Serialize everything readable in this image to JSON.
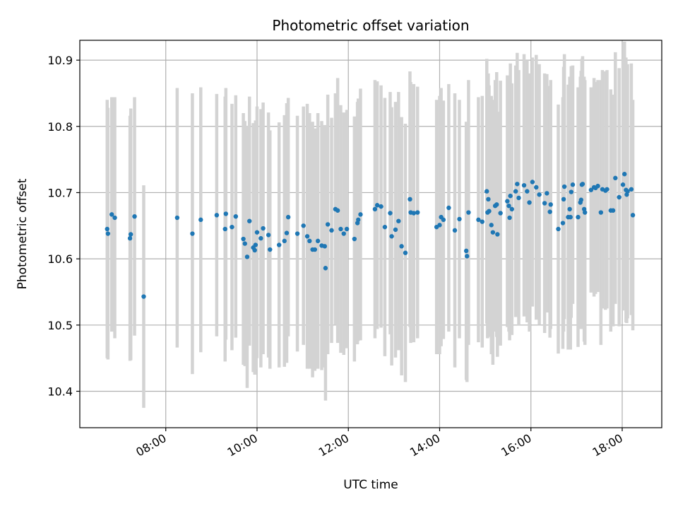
{
  "chart_data": {
    "type": "scatter",
    "title": "Photometric offset variation",
    "xlabel": "UTC time",
    "ylabel": "Photometric offset",
    "x_is_time": true,
    "xlim": [
      "06:07",
      "18:52"
    ],
    "ylim": [
      10.345,
      10.93
    ],
    "x_ticks": [
      "08:00",
      "10:00",
      "12:00",
      "14:00",
      "16:00",
      "18:00"
    ],
    "y_ticks": [
      10.4,
      10.5,
      10.6,
      10.7,
      10.8,
      10.9
    ],
    "grid": true,
    "colors": {
      "point": "#1f77b4",
      "errorbar": "#d3d3d3",
      "grid": "#b0b0b0"
    },
    "series": [
      {
        "points": [
          [
            "06:43",
            10.645,
            0.195
          ],
          [
            "06:44",
            10.638,
            0.19
          ],
          [
            "06:49",
            10.667,
            0.177
          ],
          [
            "06:53",
            10.662,
            0.182
          ],
          [
            "07:13",
            10.631,
            0.185
          ],
          [
            "07:14",
            10.637,
            0.19
          ],
          [
            "07:19",
            10.664,
            0.18
          ],
          [
            "07:31",
            10.543,
            0.168
          ],
          [
            "08:15",
            10.662,
            0.196
          ],
          [
            "08:35",
            10.638,
            0.212
          ],
          [
            "08:46",
            10.659,
            0.2
          ],
          [
            "09:07",
            10.666,
            0.183
          ],
          [
            "09:18",
            10.645,
            0.2
          ],
          [
            "09:19",
            10.668,
            0.19
          ],
          [
            "09:27",
            10.648,
            0.186
          ],
          [
            "09:32",
            10.664,
            0.183
          ],
          [
            "09:42",
            10.63,
            0.19
          ],
          [
            "09:44",
            10.623,
            0.185
          ],
          [
            "09:47",
            10.603,
            0.198
          ],
          [
            "09:50",
            10.657,
            0.188
          ],
          [
            "09:55",
            10.617,
            0.188
          ],
          [
            "09:57",
            10.613,
            0.188
          ],
          [
            "09:58",
            10.621,
            0.188
          ],
          [
            "10:00",
            10.64,
            0.19
          ],
          [
            "10:05",
            10.631,
            0.195
          ],
          [
            "10:08",
            10.646,
            0.19
          ],
          [
            "10:15",
            10.636,
            0.185
          ],
          [
            "10:17",
            10.614,
            0.18
          ],
          [
            "10:29",
            10.621,
            0.185
          ],
          [
            "10:36",
            10.627,
            0.19
          ],
          [
            "10:39",
            10.639,
            0.196
          ],
          [
            "10:41",
            10.663,
            0.18
          ],
          [
            "10:53",
            10.638,
            0.178
          ],
          [
            "11:01",
            10.65,
            0.18
          ],
          [
            "11:06",
            10.634,
            0.2
          ],
          [
            "11:09",
            10.627,
            0.193
          ],
          [
            "11:13",
            10.614,
            0.193
          ],
          [
            "11:16",
            10.614,
            0.183
          ],
          [
            "11:20",
            10.627,
            0.193
          ],
          [
            "11:25",
            10.62,
            0.188
          ],
          [
            "11:29",
            10.619,
            0.183
          ],
          [
            "11:30",
            10.586,
            0.2
          ],
          [
            "11:33",
            10.652,
            0.196
          ],
          [
            "11:38",
            10.643,
            0.17
          ],
          [
            "11:43",
            10.675,
            0.175
          ],
          [
            "11:46",
            10.673,
            0.2
          ],
          [
            "11:50",
            10.645,
            0.187
          ],
          [
            "11:54",
            10.638,
            0.183
          ],
          [
            "11:58",
            10.645,
            0.18
          ],
          [
            "12:08",
            10.63,
            0.185
          ],
          [
            "12:12",
            10.654,
            0.183
          ],
          [
            "12:13",
            10.659,
            0.183
          ],
          [
            "12:16",
            10.667,
            0.19
          ],
          [
            "12:35",
            10.675,
            0.195
          ],
          [
            "12:38",
            10.681,
            0.187
          ],
          [
            "12:43",
            10.679,
            0.183
          ],
          [
            "12:48",
            10.648,
            0.195
          ],
          [
            "12:55",
            10.669,
            0.183
          ],
          [
            "12:57",
            10.634,
            0.195
          ],
          [
            "13:02",
            10.644,
            0.193
          ],
          [
            "13:06",
            10.657,
            0.195
          ],
          [
            "13:10",
            10.619,
            0.195
          ],
          [
            "13:15",
            10.609,
            0.195
          ],
          [
            "13:21",
            10.69,
            0.193
          ],
          [
            "13:22",
            10.67,
            0.197
          ],
          [
            "13:26",
            10.669,
            0.195
          ],
          [
            "13:31",
            10.67,
            0.19
          ],
          [
            "13:56",
            10.648,
            0.192
          ],
          [
            "14:00",
            10.651,
            0.195
          ],
          [
            "14:02",
            10.663,
            0.195
          ],
          [
            "14:05",
            10.659,
            0.18
          ],
          [
            "14:12",
            10.677,
            0.187
          ],
          [
            "14:20",
            10.643,
            0.207
          ],
          [
            "14:26",
            10.66,
            0.18
          ],
          [
            "14:35",
            10.612,
            0.195
          ],
          [
            "14:36",
            10.604,
            0.19
          ],
          [
            "14:38",
            10.67,
            0.2
          ],
          [
            "14:51",
            10.659,
            0.185
          ],
          [
            "14:56",
            10.656,
            0.19
          ],
          [
            "15:02",
            10.702,
            0.2
          ],
          [
            "15:03",
            10.67,
            0.19
          ],
          [
            "15:04",
            10.69,
            0.19
          ],
          [
            "15:05",
            10.672,
            0.19
          ],
          [
            "15:08",
            10.651,
            0.195
          ],
          [
            "15:10",
            10.64,
            0.2
          ],
          [
            "15:13",
            10.68,
            0.19
          ],
          [
            "15:15",
            10.682,
            0.2
          ],
          [
            "15:16",
            10.637,
            0.185
          ],
          [
            "15:20",
            10.669,
            0.2
          ],
          [
            "15:29",
            10.687,
            0.19
          ],
          [
            "15:31",
            10.68,
            0.19
          ],
          [
            "15:32",
            10.662,
            0.185
          ],
          [
            "15:33",
            10.695,
            0.2
          ],
          [
            "15:35",
            10.675,
            0.19
          ],
          [
            "15:40",
            10.702,
            0.19
          ],
          [
            "15:42",
            10.713,
            0.198
          ],
          [
            "15:44",
            10.692,
            0.193
          ],
          [
            "15:51",
            10.711,
            0.198
          ],
          [
            "15:55",
            10.702,
            0.198
          ],
          [
            "15:58",
            10.685,
            0.195
          ],
          [
            "16:02",
            10.716,
            0.188
          ],
          [
            "16:07",
            10.708,
            0.2
          ],
          [
            "16:11",
            10.697,
            0.197
          ],
          [
            "16:18",
            10.684,
            0.196
          ],
          [
            "16:21",
            10.699,
            0.18
          ],
          [
            "16:25",
            10.671,
            0.19
          ],
          [
            "16:26",
            10.682,
            0.188
          ],
          [
            "16:36",
            10.645,
            0.188
          ],
          [
            "16:42",
            10.654,
            0.19
          ],
          [
            "16:43",
            10.69,
            0.2
          ],
          [
            "16:44",
            10.709,
            0.2
          ],
          [
            "16:49",
            10.663,
            0.2
          ],
          [
            "16:51",
            10.675,
            0.2
          ],
          [
            "16:52",
            10.663,
            0.2
          ],
          [
            "16:53",
            10.701,
            0.19
          ],
          [
            "16:55",
            10.712,
            0.18
          ],
          [
            "17:02",
            10.663,
            0.196
          ],
          [
            "17:05",
            10.685,
            0.19
          ],
          [
            "17:06",
            10.689,
            0.195
          ],
          [
            "17:07",
            10.712,
            0.19
          ],
          [
            "17:08",
            10.713,
            0.193
          ],
          [
            "17:10",
            10.675,
            0.2
          ],
          [
            "17:11",
            10.67,
            0.2
          ],
          [
            "17:19",
            10.704,
            0.155
          ],
          [
            "17:23",
            10.708,
            0.165
          ],
          [
            "17:25",
            10.707,
            0.16
          ],
          [
            "17:28",
            10.71,
            0.16
          ],
          [
            "17:32",
            10.67,
            0.2
          ],
          [
            "17:34",
            10.705,
            0.18
          ],
          [
            "17:38",
            10.703,
            0.18
          ],
          [
            "17:40",
            10.705,
            0.18
          ],
          [
            "17:45",
            10.673,
            0.183
          ],
          [
            "17:48",
            10.673,
            0.175
          ],
          [
            "17:51",
            10.722,
            0.19
          ],
          [
            "17:56",
            10.693,
            0.195
          ],
          [
            "18:01",
            10.712,
            0.19
          ],
          [
            "18:03",
            10.728,
            0.2
          ],
          [
            "18:05",
            10.704,
            0.2
          ],
          [
            "18:06",
            10.697,
            0.194
          ],
          [
            "18:07",
            10.702,
            0.192
          ],
          [
            "18:12",
            10.705,
            0.19
          ],
          [
            "18:14",
            10.666,
            0.174
          ]
        ]
      }
    ]
  }
}
